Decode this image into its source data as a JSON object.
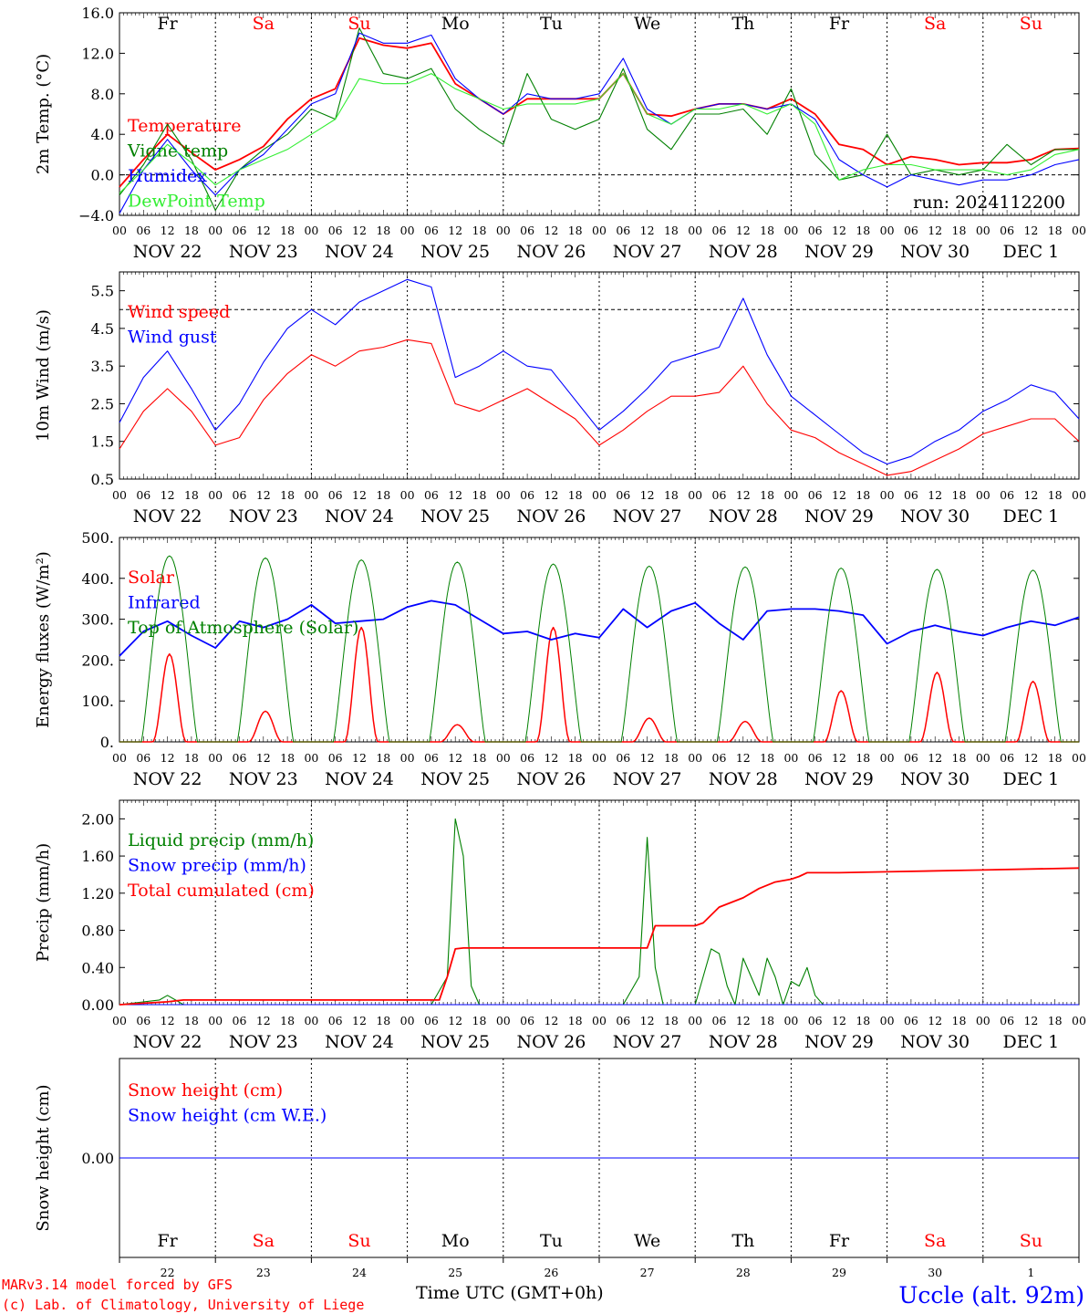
{
  "footer": {
    "credit_line1": "MARv3.14 model forced by GFS",
    "credit_line2": "(c) Lab. of Climatology, University of Liege",
    "xaxis_title": "Time UTC (GMT+0h)",
    "station": "Uccle (alt. 92m)"
  },
  "colors": {
    "red": "#ff0000",
    "green": "#008000",
    "blue": "#0000ff",
    "light_green": "#33ee33",
    "purple": "#800080"
  },
  "dates": [
    "NOV 22",
    "NOV 23",
    "NOV 24",
    "NOV 25",
    "NOV 26",
    "NOV 27",
    "NOV 28",
    "NOV 29",
    "NOV 30",
    "DEC  1"
  ],
  "day_names": [
    "Fr",
    "Sa",
    "Su",
    "Mo",
    "Tu",
    "We",
    "Th",
    "Fr",
    "Sa",
    "Su"
  ],
  "weekend_flags": [
    false,
    true,
    true,
    false,
    false,
    false,
    false,
    false,
    true,
    true
  ],
  "day_numbers": [
    "22",
    "23",
    "24",
    "25",
    "26",
    "27",
    "28",
    "29",
    "30",
    "1"
  ],
  "hour_labels": [
    "00",
    "06",
    "12",
    "18"
  ],
  "hour_label_end": "00",
  "chart_data": [
    {
      "type": "line",
      "ylabel": "2m Temp. (°C)",
      "ylim": [
        -4,
        16
      ],
      "yticks": [
        "−4.0",
        "0.0",
        "4.0",
        "8.0",
        "12.0",
        "16.0"
      ],
      "ytick_values": [
        -4,
        0,
        4,
        8,
        12,
        16
      ],
      "ref_line": 0,
      "annotation": "run: 2024112200",
      "series": [
        {
          "name": "Temperature",
          "color": "#ff0000",
          "x": [
            0,
            6,
            12,
            18,
            24,
            30,
            36,
            42,
            48,
            54,
            60,
            66,
            72,
            78,
            84,
            90,
            96,
            102,
            108,
            114,
            120,
            126,
            132,
            138,
            144,
            150,
            156,
            162,
            168,
            174,
            180,
            186,
            192,
            198,
            204,
            210,
            216,
            222,
            228,
            234,
            240
          ],
          "y": [
            -1.2,
            1.5,
            4.0,
            2.2,
            0.5,
            1.5,
            2.8,
            5.5,
            7.5,
            8.5,
            13.5,
            12.8,
            12.5,
            13.0,
            9.0,
            7.5,
            6.0,
            7.5,
            7.5,
            7.5,
            7.5,
            10.0,
            6.0,
            5.8,
            6.5,
            7.0,
            7.0,
            6.5,
            7.5,
            6.0,
            3.0,
            2.5,
            1.0,
            1.8,
            1.5,
            1.0,
            1.2,
            1.2,
            1.5,
            2.5,
            2.6
          ]
        },
        {
          "name": "Vigne temp",
          "color": "#008000",
          "x": [
            0,
            6,
            12,
            18,
            24,
            30,
            36,
            42,
            48,
            54,
            60,
            66,
            72,
            78,
            84,
            90,
            96,
            102,
            108,
            114,
            120,
            126,
            132,
            138,
            144,
            150,
            156,
            162,
            168,
            174,
            180,
            186,
            192,
            198,
            204,
            210,
            216,
            222,
            228,
            234,
            240
          ],
          "y": [
            -2.0,
            1.0,
            5.0,
            1.5,
            -3.5,
            0.5,
            2.5,
            4.0,
            6.5,
            5.5,
            14.5,
            10.0,
            9.5,
            10.5,
            6.5,
            4.5,
            3.0,
            10.0,
            5.5,
            4.5,
            5.5,
            10.5,
            4.5,
            2.5,
            6.0,
            6.0,
            6.5,
            4.0,
            8.5,
            2.0,
            -0.5,
            0.0,
            4.0,
            0.0,
            0.5,
            0.0,
            0.5,
            3.0,
            1.0,
            2.5,
            2.5
          ]
        },
        {
          "name": "Humidex",
          "color": "#0000ff",
          "x": [
            0,
            6,
            12,
            18,
            24,
            30,
            36,
            42,
            48,
            54,
            60,
            66,
            72,
            78,
            84,
            90,
            96,
            102,
            108,
            114,
            120,
            126,
            132,
            138,
            144,
            150,
            156,
            162,
            168,
            174,
            180,
            186,
            192,
            198,
            204,
            210,
            216,
            222,
            228,
            234,
            240
          ],
          "y": [
            -3.8,
            0.5,
            3.5,
            0.5,
            -2.0,
            0.5,
            2.0,
            4.5,
            7.0,
            8.0,
            14.0,
            13.0,
            13.0,
            13.8,
            9.5,
            7.5,
            6.0,
            8.0,
            7.5,
            7.5,
            8.0,
            11.5,
            6.5,
            5.0,
            6.5,
            7.0,
            7.0,
            6.5,
            7.0,
            5.5,
            1.5,
            0.0,
            -1.2,
            0.0,
            -0.5,
            -1.0,
            -0.5,
            -0.5,
            0.0,
            1.0,
            1.5
          ]
        },
        {
          "name": "DewPoint Temp",
          "color": "#33ee33",
          "x": [
            0,
            6,
            12,
            18,
            24,
            30,
            36,
            42,
            48,
            54,
            60,
            66,
            72,
            78,
            84,
            90,
            96,
            102,
            108,
            114,
            120,
            126,
            132,
            138,
            144,
            150,
            156,
            162,
            168,
            174,
            180,
            186,
            192,
            198,
            204,
            210,
            216,
            222,
            228,
            234,
            240
          ],
          "y": [
            -1.8,
            0.5,
            3.0,
            1.2,
            -1.0,
            0.5,
            1.5,
            2.5,
            4.0,
            5.5,
            9.5,
            9.0,
            9.0,
            10.0,
            8.5,
            7.5,
            6.5,
            7.0,
            7.0,
            7.0,
            7.5,
            10.0,
            6.0,
            5.0,
            6.5,
            6.5,
            7.0,
            6.0,
            7.0,
            5.0,
            -0.5,
            0.5,
            1.0,
            1.0,
            0.5,
            0.5,
            0.5,
            0.0,
            0.5,
            2.0,
            2.5
          ]
        }
      ]
    },
    {
      "type": "line",
      "ylabel": "10m Wind (m/s)",
      "ylim": [
        0.5,
        6.0
      ],
      "yticks": [
        "0.5",
        "1.5",
        "2.5",
        "3.5",
        "4.5",
        "5.5"
      ],
      "ytick_values": [
        0.5,
        1.5,
        2.5,
        3.5,
        4.5,
        5.5
      ],
      "ref_line": 5.0,
      "series": [
        {
          "name": "Wind speed",
          "color": "#ff0000",
          "x": [
            0,
            6,
            12,
            18,
            24,
            30,
            36,
            42,
            48,
            54,
            60,
            66,
            72,
            78,
            84,
            90,
            96,
            102,
            108,
            114,
            120,
            126,
            132,
            138,
            144,
            150,
            156,
            162,
            168,
            174,
            180,
            186,
            192,
            198,
            204,
            210,
            216,
            222,
            228,
            234,
            240
          ],
          "y": [
            1.3,
            2.3,
            2.9,
            2.3,
            1.4,
            1.6,
            2.6,
            3.3,
            3.8,
            3.5,
            3.9,
            4.0,
            4.2,
            4.1,
            2.5,
            2.3,
            2.6,
            2.9,
            2.5,
            2.1,
            1.4,
            1.8,
            2.3,
            2.7,
            2.7,
            2.8,
            3.5,
            2.5,
            1.8,
            1.6,
            1.2,
            0.9,
            0.6,
            0.7,
            1.0,
            1.3,
            1.7,
            1.9,
            2.1,
            2.1,
            1.5
          ]
        },
        {
          "name": "Wind gust",
          "color": "#0000ff",
          "x": [
            0,
            6,
            12,
            18,
            24,
            30,
            36,
            42,
            48,
            54,
            60,
            66,
            72,
            78,
            84,
            90,
            96,
            102,
            108,
            114,
            120,
            126,
            132,
            138,
            144,
            150,
            156,
            162,
            168,
            174,
            180,
            186,
            192,
            198,
            204,
            210,
            216,
            222,
            228,
            234,
            240
          ],
          "y": [
            2.0,
            3.2,
            3.9,
            2.9,
            1.8,
            2.5,
            3.6,
            4.5,
            5.0,
            4.6,
            5.2,
            5.5,
            5.8,
            5.6,
            3.2,
            3.5,
            3.9,
            3.5,
            3.4,
            2.6,
            1.8,
            2.3,
            2.9,
            3.6,
            3.8,
            4.0,
            5.3,
            3.8,
            2.7,
            2.2,
            1.7,
            1.2,
            0.9,
            1.1,
            1.5,
            1.8,
            2.3,
            2.6,
            3.0,
            2.8,
            2.1
          ]
        }
      ]
    },
    {
      "type": "line",
      "ylabel": "Energy fluxes (W/m²)",
      "ylim": [
        0,
        500
      ],
      "yticks": [
        "0.",
        "100.",
        "200.",
        "300.",
        "400.",
        "500."
      ],
      "ytick_values": [
        0,
        100,
        200,
        300,
        400,
        500
      ],
      "series": [
        {
          "name": "Solar",
          "color": "#ff0000",
          "day_peaks": [
            215,
            75,
            280,
            42,
            280,
            58,
            50,
            125,
            170,
            148
          ]
        },
        {
          "name": "Infrared",
          "color": "#0000ff",
          "x": [
            0,
            6,
            12,
            18,
            24,
            30,
            36,
            42,
            48,
            54,
            60,
            66,
            72,
            78,
            84,
            90,
            96,
            102,
            108,
            114,
            120,
            126,
            132,
            138,
            144,
            150,
            156,
            162,
            168,
            174,
            180,
            186,
            192,
            198,
            204,
            210,
            216,
            222,
            228,
            234,
            240
          ],
          "y": [
            210,
            270,
            295,
            260,
            230,
            295,
            280,
            300,
            335,
            290,
            295,
            300,
            330,
            345,
            335,
            300,
            265,
            270,
            250,
            265,
            255,
            325,
            280,
            320,
            340,
            290,
            250,
            320,
            325,
            325,
            320,
            310,
            240,
            270,
            285,
            270,
            260,
            280,
            295,
            285,
            305
          ]
        },
        {
          "name": "Top of Atmosphere (Solar)",
          "color": "#008000",
          "day_peaks": [
            455,
            450,
            445,
            440,
            435,
            430,
            428,
            425,
            422,
            420
          ]
        }
      ]
    },
    {
      "type": "line",
      "ylabel": "Precip (mm/h)",
      "ylim": [
        0,
        2.2
      ],
      "yticks": [
        "0.00",
        "0.40",
        "0.80",
        "1.20",
        "1.60",
        "2.00"
      ],
      "ytick_values": [
        0,
        0.4,
        0.8,
        1.2,
        1.6,
        2.0
      ],
      "series": [
        {
          "name": "Liquid precip (mm/h)",
          "color": "#008000",
          "x": [
            0,
            10,
            12,
            14,
            16,
            24,
            30,
            36,
            42,
            48,
            54,
            60,
            66,
            72,
            78,
            82,
            84,
            86,
            88,
            90,
            96,
            102,
            108,
            114,
            120,
            126,
            130,
            132,
            134,
            136,
            144,
            148,
            150,
            152,
            154,
            156,
            158,
            160,
            162,
            164,
            166,
            168,
            170,
            172,
            174,
            176,
            178,
            180,
            186,
            192,
            198,
            204,
            210,
            216,
            222,
            228,
            234,
            240
          ],
          "y": [
            0,
            0.05,
            0.1,
            0.05,
            0,
            0,
            0,
            0,
            0,
            0,
            0,
            0,
            0,
            0,
            0,
            0.3,
            2.0,
            1.6,
            0.2,
            0,
            0,
            0,
            0,
            0,
            0,
            0,
            0.3,
            1.8,
            0.4,
            0,
            0,
            0.6,
            0.55,
            0.2,
            0,
            0.5,
            0.3,
            0.1,
            0.5,
            0.3,
            0,
            0.25,
            0.2,
            0.4,
            0.1,
            0,
            0,
            0,
            0,
            0,
            0,
            0,
            0,
            0,
            0,
            0,
            0,
            0
          ]
        },
        {
          "name": "Snow precip (mm/h)",
          "color": "#0000ff",
          "x": [
            0,
            240
          ],
          "y": [
            0,
            0
          ]
        },
        {
          "name": "Total cumulated (cm)",
          "color": "#ff0000",
          "x": [
            0,
            12,
            16,
            24,
            48,
            72,
            80,
            82,
            84,
            86,
            96,
            120,
            132,
            134,
            136,
            144,
            146,
            150,
            156,
            160,
            164,
            168,
            170,
            172,
            176,
            180,
            192,
            216,
            240
          ],
          "y": [
            0,
            0.03,
            0.05,
            0.05,
            0.05,
            0.05,
            0.05,
            0.3,
            0.6,
            0.61,
            0.61,
            0.61,
            0.61,
            0.85,
            0.85,
            0.85,
            0.88,
            1.05,
            1.15,
            1.25,
            1.32,
            1.35,
            1.38,
            1.42,
            1.42,
            1.42,
            1.43,
            1.45,
            1.47
          ]
        }
      ]
    },
    {
      "type": "line",
      "ylabel": "Snow height (cm)",
      "ylim": [
        -1,
        1
      ],
      "yticks": [
        "0.00"
      ],
      "ytick_values": [
        0
      ],
      "series": [
        {
          "name": "Snow height (cm)",
          "color": "#ff0000",
          "x": [
            0,
            240
          ],
          "y": [
            0,
            0
          ]
        },
        {
          "name": "Snow height (cm W.E.)",
          "color": "#0000ff",
          "x": [
            0,
            240
          ],
          "y": [
            0,
            0
          ]
        }
      ]
    }
  ]
}
